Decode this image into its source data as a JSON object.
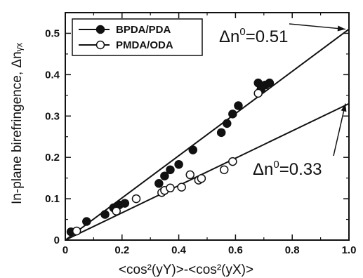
{
  "chart_data": {
    "type": "scatter",
    "xlabel": "<cos²(yY)>-<cos²(yX)>",
    "ylabel": "In-plane birefringence, Δnᵧₓ",
    "xlim": [
      0,
      1.0
    ],
    "ylim": [
      0,
      0.55
    ],
    "x_ticks": [
      "0",
      "0.2",
      "0.4",
      "0.6",
      "0.8",
      "1.0"
    ],
    "y_ticks": [
      "0",
      "0.1",
      "0.2",
      "0.3",
      "0.4",
      "0.5"
    ],
    "legend_position": "top-left",
    "series": [
      {
        "name": "BPDA/PDA",
        "marker": "filled-circle",
        "color": "#111111",
        "points": [
          [
            0.02,
            0.02
          ],
          [
            0.075,
            0.045
          ],
          [
            0.14,
            0.062
          ],
          [
            0.17,
            0.078
          ],
          [
            0.19,
            0.085
          ],
          [
            0.21,
            0.089
          ],
          [
            0.33,
            0.137
          ],
          [
            0.35,
            0.155
          ],
          [
            0.37,
            0.17
          ],
          [
            0.4,
            0.183
          ],
          [
            0.45,
            0.218
          ],
          [
            0.55,
            0.26
          ],
          [
            0.57,
            0.282
          ],
          [
            0.59,
            0.305
          ],
          [
            0.61,
            0.325
          ],
          [
            0.68,
            0.38
          ],
          [
            0.69,
            0.365
          ],
          [
            0.705,
            0.375
          ],
          [
            0.72,
            0.38
          ]
        ],
        "fit": {
          "x": [
            0,
            1.0
          ],
          "y": [
            0,
            0.51
          ]
        }
      },
      {
        "name": "PMDA/ODA",
        "marker": "open-circle",
        "color": "#111111",
        "points": [
          [
            0.04,
            0.022
          ],
          [
            0.18,
            0.07
          ],
          [
            0.25,
            0.1
          ],
          [
            0.34,
            0.115
          ],
          [
            0.35,
            0.12
          ],
          [
            0.37,
            0.126
          ],
          [
            0.41,
            0.128
          ],
          [
            0.44,
            0.158
          ],
          [
            0.47,
            0.145
          ],
          [
            0.48,
            0.149
          ],
          [
            0.56,
            0.17
          ],
          [
            0.59,
            0.19
          ],
          [
            0.68,
            0.355
          ]
        ],
        "fit": {
          "x": [
            0,
            1.0
          ],
          "y": [
            0,
            0.33
          ]
        }
      }
    ],
    "annotations": [
      {
        "label": "Δn",
        "superscript": "0",
        "value_text": "=0.51",
        "target": [
          1.0,
          0.51
        ]
      },
      {
        "label": "Δn",
        "superscript": "0",
        "value_text": "=0.33",
        "target": [
          1.0,
          0.33
        ]
      }
    ]
  }
}
